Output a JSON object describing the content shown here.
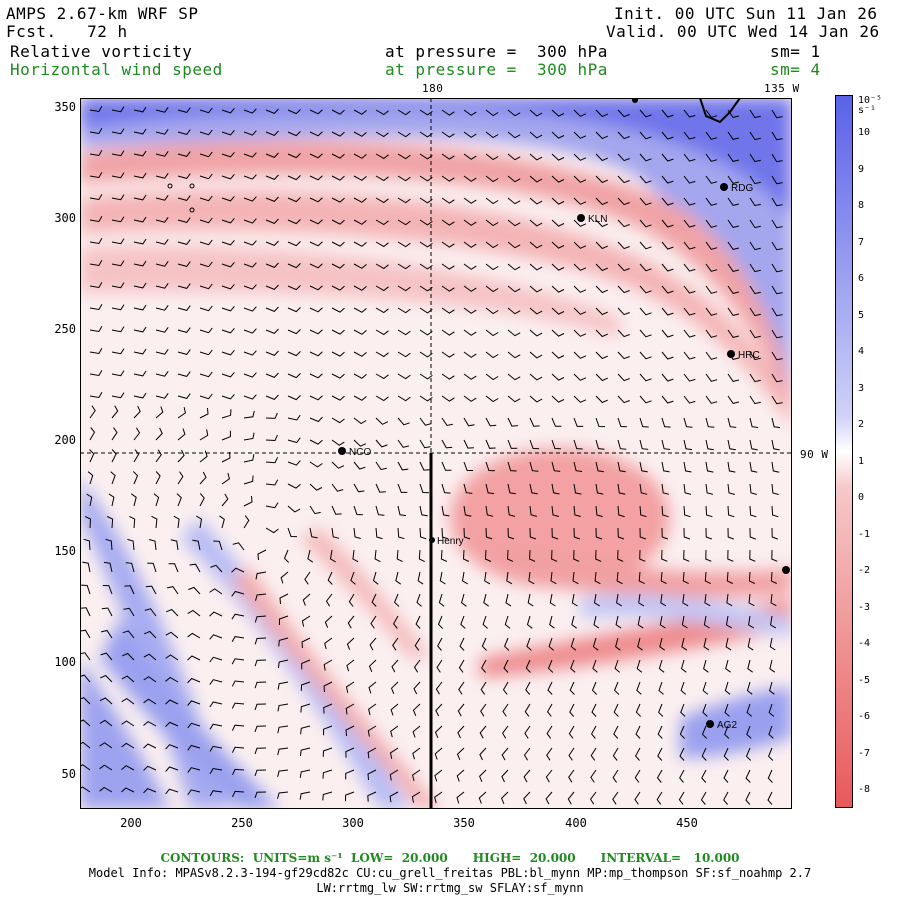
{
  "header": {
    "model": "AMPS 2.67-km WRF SP",
    "fcst": "Fcst.   72 h",
    "init": "Init. 00 UTC Sun 11 Jan 26",
    "valid": "Valid. 00 UTC Wed 14 Jan 26",
    "field1": "Relative vorticity",
    "field1_pressure": "at pressure =  300 hPa",
    "field1_sm": "sm= 1",
    "field2": "Horizontal wind speed",
    "field2_pressure": "at pressure =  300 hPa",
    "field2_sm": "sm= 4"
  },
  "map_labels": {
    "meridian_180": "180",
    "meridian_135w": "135 W",
    "meridian_90w": "90 W"
  },
  "stations": [
    {
      "name": "RDG"
    },
    {
      "name": "KLN"
    },
    {
      "name": "HRC"
    },
    {
      "name": "NCO"
    },
    {
      "name": "Henry"
    },
    {
      "name": "AG2"
    },
    {
      "name": ""
    }
  ],
  "axes": {
    "x_ticks": [
      "200",
      "250",
      "300",
      "350",
      "400",
      "450"
    ],
    "y_ticks": [
      "350",
      "300",
      "250",
      "200",
      "150",
      "100",
      "50"
    ]
  },
  "colorbar": {
    "unit": "10⁻⁵ s⁻¹",
    "labels": [
      "10",
      "9",
      "8",
      "7",
      "6",
      "5",
      "4",
      "3",
      "2",
      "1",
      "0",
      "-1",
      "-2",
      "-3",
      "-4",
      "-5",
      "-6",
      "-7",
      "-8"
    ],
    "colors": {
      "positive": "#e8595a",
      "negative": "#5a62e8",
      "zero": "#ffffff"
    }
  },
  "footer": {
    "contours": "CONTOURS:  UNITS=m s⁻¹  LOW=  20.000      HIGH=  20.000      INTERVAL=   10.000",
    "model_info": "Model Info: MPASv8.2.3-194-gf29cd82c CU:cu_grell_freitas PBL:bl_mynn MP:mp_thompson SF:sf_noahmp 2.7",
    "model_info2": "LW:rrtmg_lw SW:rrtmg_sw SFLAY:sf_mynn"
  }
}
